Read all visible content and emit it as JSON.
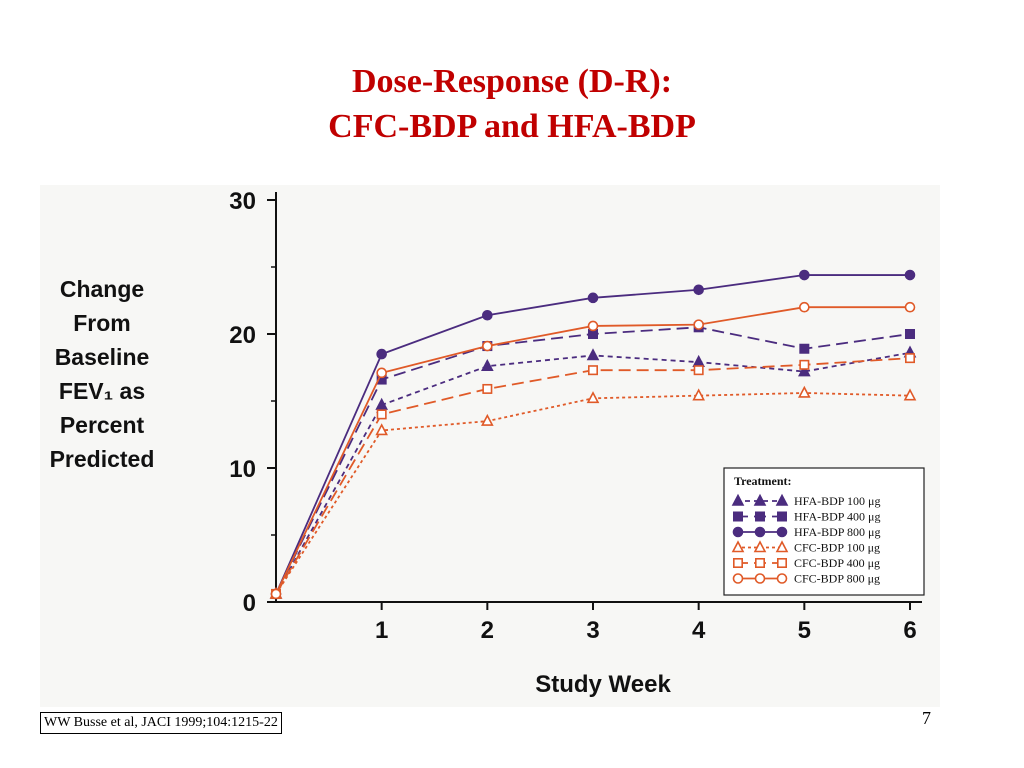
{
  "slide": {
    "title_line1": "Dose-Response (D-R):",
    "title_line2": "CFC-BDP and HFA-BDP",
    "citation": "WW Busse et al, JACI 1999;104:1215-22",
    "page_number": "7",
    "title_color": "#c00000"
  },
  "chart_data": {
    "type": "line",
    "xlabel": "Study Week",
    "ylabel_lines": [
      "Change",
      "From",
      "Baseline",
      "FEV₁ as",
      "Percent",
      "Predicted"
    ],
    "x_ticks": [
      1,
      2,
      3,
      4,
      5,
      6
    ],
    "y_ticks": [
      0,
      10,
      20,
      30
    ],
    "xlim": [
      0,
      6
    ],
    "ylim": [
      0,
      30
    ],
    "grid": false,
    "legend_title": "Treatment:",
    "legend_position": "bottom-right",
    "x": [
      0,
      1,
      2,
      3,
      4,
      5,
      6
    ],
    "series": [
      {
        "name": "HFA-BDP 100 μg",
        "color": "#4b2c7f",
        "dash": "5,4",
        "marker": "triangle-filled",
        "values": [
          0.6,
          14.7,
          17.6,
          18.4,
          17.9,
          17.2,
          18.6
        ]
      },
      {
        "name": "HFA-BDP 400 μg",
        "color": "#4b2c7f",
        "dash": "12,6",
        "marker": "square-filled",
        "values": [
          0.6,
          16.6,
          19.1,
          20.0,
          20.5,
          18.9,
          20.0
        ]
      },
      {
        "name": "HFA-BDP 800 μg",
        "color": "#4b2c7f",
        "dash": "",
        "marker": "circle-filled",
        "values": [
          0.6,
          18.5,
          21.4,
          22.7,
          23.3,
          24.4,
          24.4
        ]
      },
      {
        "name": "CFC-BDP 100 μg",
        "color": "#e05a28",
        "dash": "3,3",
        "marker": "triangle-open",
        "values": [
          0.6,
          12.8,
          13.5,
          15.2,
          15.4,
          15.6,
          15.4
        ]
      },
      {
        "name": "CFC-BDP 400 μg",
        "color": "#e05a28",
        "dash": "12,6",
        "marker": "square-open",
        "values": [
          0.6,
          14.0,
          15.9,
          17.3,
          17.3,
          17.7,
          18.2
        ]
      },
      {
        "name": "CFC-BDP 800 μg",
        "color": "#e05a28",
        "dash": "",
        "marker": "circle-open",
        "values": [
          0.6,
          17.1,
          19.1,
          20.6,
          20.7,
          22.0,
          22.0
        ]
      }
    ]
  }
}
